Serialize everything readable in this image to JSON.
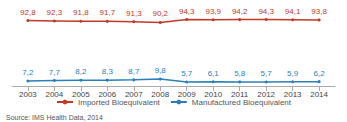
{
  "chart_data": {
    "type": "line",
    "x": [
      2003,
      2004,
      2005,
      2006,
      2007,
      2008,
      2009,
      2010,
      2011,
      2012,
      2013,
      2014
    ],
    "xlim": [
      2002.4,
      2014.6
    ],
    "xticks": [
      2003,
      2004,
      2005,
      2006,
      2007,
      2008,
      2009,
      2010,
      2011,
      2012,
      2013,
      2014
    ],
    "ylim": [
      0,
      105
    ],
    "tick_labels": "x",
    "grid": false,
    "legend": "bottom",
    "data_labels": true,
    "series": [
      {
        "name": "Imported Bioequivalent",
        "color": "#c0392b",
        "values": [
          92.8,
          92.3,
          91.8,
          91.7,
          91.3,
          90.2,
          94.3,
          93.9,
          94.2,
          94.3,
          94.1,
          93.8
        ],
        "value_labels": [
          "92,8",
          "92,3",
          "91,8",
          "91,7",
          "91,3",
          "90,2",
          "94,3",
          "93,9",
          "94,2",
          "94,3",
          "94,1",
          "93,8"
        ]
      },
      {
        "name": "Manufactured Bioequivalent",
        "color": "#2980b9",
        "values": [
          7.2,
          7.7,
          8.2,
          8.3,
          8.7,
          9.8,
          5.7,
          6.1,
          5.8,
          5.7,
          5.9,
          6.2
        ],
        "value_labels": [
          "7,2",
          "7,7",
          "8,2",
          "8,3",
          "8,7",
          "9,8",
          "5,7",
          "6,1",
          "5,8",
          "5,7",
          "5,9",
          "6,2"
        ]
      }
    ],
    "annotations": [
      "Source: IMS Health Data, 2014"
    ]
  }
}
